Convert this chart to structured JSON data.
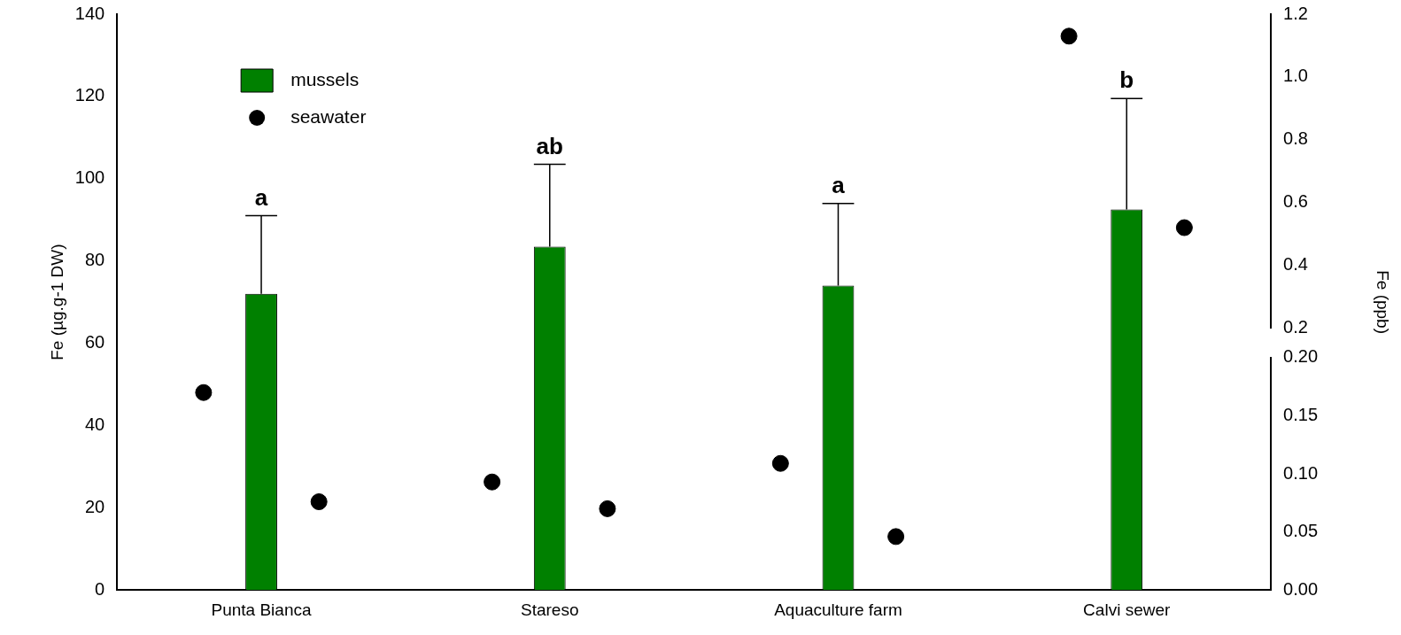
{
  "chart_data": {
    "type": "bar",
    "categories": [
      "Punta Bianca",
      "Stareso",
      "Aquaculture farm",
      "Calvi sewer"
    ],
    "ylabel": "Fe (µg.g-1 DW)",
    "y2label": "Fe (ppb)",
    "series": [
      {
        "name": "mussels",
        "color": "#008000",
        "values": [
          72,
          83.5,
          74,
          92.5
        ],
        "errors": [
          [
            72,
            91
          ],
          [
            83.5,
            103.5
          ],
          [
            74,
            94
          ],
          [
            92.5,
            119.5
          ]
        ]
      },
      {
        "name": "seawater",
        "type": "scatter",
        "axis": "y2",
        "color": "#000000",
        "x": [
          "Punta Bianca",
          "Punta Bianca",
          "Stareso",
          "Stareso",
          "Aquaculture farm",
          "Aquaculture farm"
        ],
        "values": [
          0.17,
          0.076,
          0.093,
          0.07,
          0.109,
          0.046
        ]
      },
      {
        "type": "scatter",
        "axis": "y3",
        "color": "#000000",
        "x": [
          "Calvi sewer",
          "Calvi sewer"
        ],
        "values": [
          1.13,
          0.52
        ]
      }
    ],
    "ylim": [
      0,
      140
    ],
    "yticks": [
      0,
      20,
      40,
      60,
      80,
      100,
      120,
      140
    ],
    "y2lim": [
      0,
      0.2
    ],
    "y2ticks": [
      {
        "value": 0,
        "label": "0.00"
      },
      {
        "value": 0.05,
        "label": "0.05"
      },
      {
        "value": 0.1,
        "label": "0.10"
      },
      {
        "value": 0.15,
        "label": "0.15"
      },
      {
        "value": 0.2,
        "label": "0.20"
      }
    ],
    "y3lim": [
      0.2,
      1.2
    ],
    "y3ticks": [
      {
        "value": 0.2,
        "label": "0.2"
      },
      {
        "value": 0.4,
        "label": "0.4"
      },
      {
        "value": 0.6,
        "label": "0.6"
      },
      {
        "value": 0.8,
        "label": "0.8"
      },
      {
        "value": 1,
        "label": "1.0"
      },
      {
        "value": 1.2,
        "label": "1.2"
      }
    ],
    "annotations": [
      "a",
      "ab",
      "a",
      "b"
    ],
    "legend": "top left",
    "marker": "circle",
    "grid": false
  }
}
